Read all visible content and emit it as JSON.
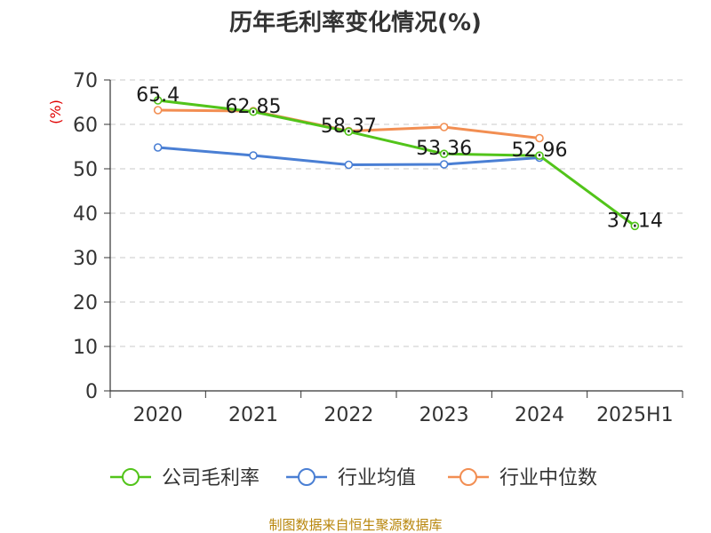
{
  "chart_data": {
    "type": "line",
    "title": "历年毛利率变化情况(%)",
    "y_unit": "(%)",
    "categories": [
      "2020",
      "2021",
      "2022",
      "2023",
      "2024",
      "2025H1"
    ],
    "ylim": [
      0,
      70
    ],
    "yticks": [
      "0",
      "10",
      "20",
      "30",
      "40",
      "50",
      "60",
      "70"
    ],
    "grid": true,
    "legend_position": "bottom",
    "series": [
      {
        "name": "公司毛利率",
        "color": "#52c41a",
        "values": [
          65.4,
          62.85,
          58.37,
          53.36,
          52.96,
          37.14
        ],
        "labels": [
          "65.4",
          "62.85",
          "58.37",
          "53.36",
          "52.96",
          "37.14"
        ]
      },
      {
        "name": "行业均值",
        "color": "#4a7fd4",
        "values": [
          54.8,
          53.0,
          50.9,
          51.0,
          52.5,
          null
        ]
      },
      {
        "name": "行业中位数",
        "color": "#f28e52",
        "values": [
          63.2,
          63.0,
          58.5,
          59.4,
          56.9,
          null
        ]
      }
    ],
    "source": "制图数据来自恒生聚源数据库"
  }
}
